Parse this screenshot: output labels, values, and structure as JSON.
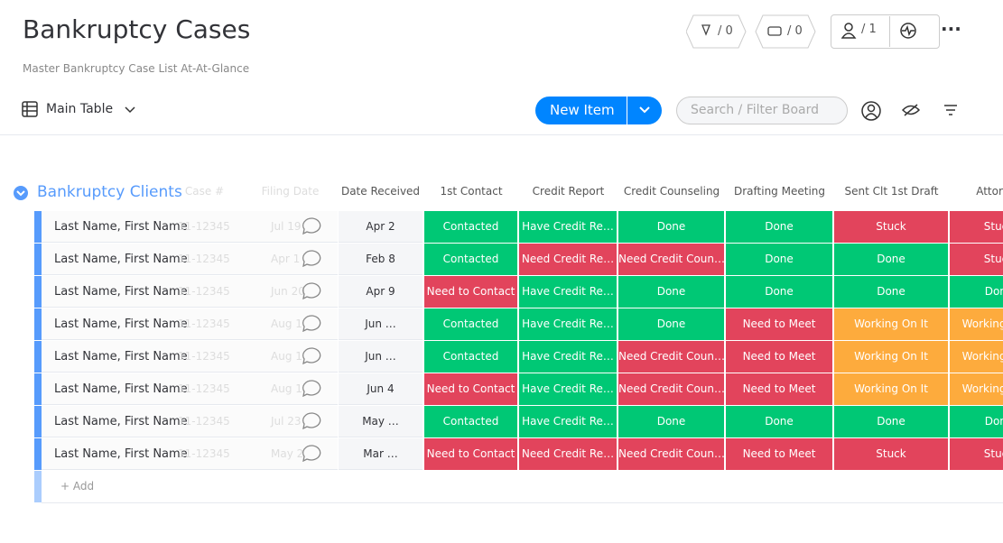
{
  "header": {
    "title": "Bankruptcy Cases",
    "subtitle": "Master Bankruptcy Case List At-At-Glance",
    "view": "Main Table",
    "counters": [
      "/ 0",
      "/ 0",
      "/ 1"
    ]
  },
  "toolbar": {
    "new_item": "New Item",
    "search_placeholder": "Search / Filter Board"
  },
  "group": {
    "name": "Bankruptcy Clients",
    "color": "#579bfc",
    "columns": [
      "Case #",
      "Filing Date",
      "Date Received",
      "1st Contact",
      "Credit Report",
      "Credit Counseling",
      "Drafting Meeting",
      "Sent Clt 1st Draft",
      "Attorney"
    ],
    "rows": [
      [
        "Last Name, First Name",
        "11-12345",
        "Jul 19",
        "Apr 2",
        "Contacted",
        "Have Credit Re…",
        "Done",
        "Done",
        "Stuck",
        "Stuck"
      ],
      [
        "Last Name, First Name",
        "11-12345",
        "Apr 1",
        "Feb 8",
        "Contacted",
        "Need Credit Re…",
        "Need Credit Coun…",
        "Done",
        "Done",
        "Stuck"
      ],
      [
        "Last Name, First Name",
        "11-12345",
        "Jun 20",
        "Apr 9",
        "Need to Contact",
        "Have Credit Re…",
        "Done",
        "Done",
        "Done",
        "Done"
      ],
      [
        "Last Name, First Name",
        "11-12345",
        "Aug 1",
        "Jun …",
        "Contacted",
        "Have Credit Re…",
        "Done",
        "Need to Meet",
        "Working On It",
        "Working On It"
      ],
      [
        "Last Name, First Name",
        "11-12345",
        "Aug 1",
        "Jun …",
        "Contacted",
        "Have Credit Re…",
        "Need Credit Coun…",
        "Need to Meet",
        "Working On It",
        "Working On It"
      ],
      [
        "Last Name, First Name",
        "11-12345",
        "Aug 1",
        "Jun 4",
        "Need to Contact",
        "Have Credit Re…",
        "Need Credit Coun…",
        "Need to Meet",
        "Working On It",
        "Working On It"
      ],
      [
        "Last Name, First Name",
        "11-12345",
        "Jul 23",
        "May …",
        "Contacted",
        "Have Credit Re…",
        "Done",
        "Done",
        "Done",
        "Done"
      ],
      [
        "Last Name, First Name",
        "11-12345",
        "May 2",
        "Mar …",
        "Need to Contact",
        "Need Credit Re…",
        "Need Credit Coun…",
        "Need to Meet",
        "Stuck",
        "Stuck"
      ]
    ],
    "add": "+ Add",
    "status_colors": {
      "Contacted": "#00c875",
      "Done": "#00c875",
      "Have Credit Re…": "#00c875",
      "Need to Contact": "#e2445c",
      "Need Credit Re…": "#e2445c",
      "Need Credit Coun…": "#e2445c",
      "Need to Meet": "#e2445c",
      "Stuck": "#e2445c",
      "Working On It": "#fdab3d"
    }
  }
}
